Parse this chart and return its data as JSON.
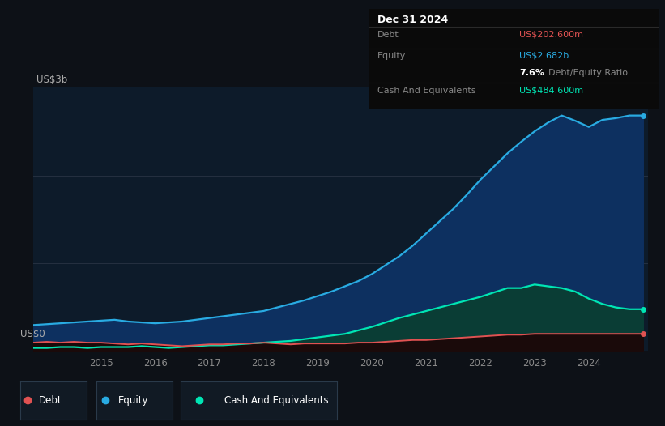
{
  "background_color": "#0d1117",
  "chart_bg": "#0d1b2a",
  "title_box": {
    "date": "Dec 31 2024",
    "debt_label": "Debt",
    "debt_value": "US$202.600m",
    "equity_label": "Equity",
    "equity_value": "US$2.682b",
    "ratio_bold": "7.6%",
    "ratio_text": "Debt/Equity Ratio",
    "cash_label": "Cash And Equivalents",
    "cash_value": "US$484.600m"
  },
  "ylabel": "US$3b",
  "y0label": "US$0",
  "x_ticks": [
    2015,
    2016,
    2017,
    2018,
    2019,
    2020,
    2021,
    2022,
    2023,
    2024
  ],
  "equity_color": "#29abe2",
  "debt_color": "#e05252",
  "cash_color": "#00e5b4",
  "equity_fill": "#0d3060",
  "cash_fill": "#0a3d35",
  "years": [
    2013.75,
    2014.0,
    2014.25,
    2014.5,
    2014.75,
    2015.0,
    2015.25,
    2015.5,
    2015.75,
    2016.0,
    2016.25,
    2016.5,
    2016.75,
    2017.0,
    2017.25,
    2017.5,
    2017.75,
    2018.0,
    2018.25,
    2018.5,
    2018.75,
    2019.0,
    2019.25,
    2019.5,
    2019.75,
    2020.0,
    2020.25,
    2020.5,
    2020.75,
    2021.0,
    2021.25,
    2021.5,
    2021.75,
    2022.0,
    2022.25,
    2022.5,
    2022.75,
    2023.0,
    2023.25,
    2023.5,
    2023.75,
    2024.0,
    2024.25,
    2024.5,
    2024.75,
    2025.0
  ],
  "equity": [
    0.3,
    0.31,
    0.32,
    0.33,
    0.34,
    0.35,
    0.36,
    0.34,
    0.33,
    0.32,
    0.33,
    0.34,
    0.36,
    0.38,
    0.4,
    0.42,
    0.44,
    0.46,
    0.5,
    0.54,
    0.58,
    0.63,
    0.68,
    0.74,
    0.8,
    0.88,
    0.98,
    1.08,
    1.2,
    1.34,
    1.48,
    1.62,
    1.78,
    1.95,
    2.1,
    2.25,
    2.38,
    2.5,
    2.6,
    2.68,
    2.62,
    2.55,
    2.63,
    2.65,
    2.68,
    2.68
  ],
  "debt": [
    0.1,
    0.11,
    0.1,
    0.11,
    0.1,
    0.1,
    0.09,
    0.08,
    0.09,
    0.08,
    0.07,
    0.06,
    0.07,
    0.08,
    0.08,
    0.09,
    0.09,
    0.1,
    0.09,
    0.08,
    0.09,
    0.09,
    0.09,
    0.09,
    0.1,
    0.1,
    0.11,
    0.12,
    0.13,
    0.13,
    0.14,
    0.15,
    0.16,
    0.17,
    0.18,
    0.19,
    0.19,
    0.2,
    0.2,
    0.2,
    0.2,
    0.2,
    0.2,
    0.2,
    0.2,
    0.2
  ],
  "cash": [
    0.04,
    0.04,
    0.05,
    0.05,
    0.04,
    0.05,
    0.05,
    0.05,
    0.06,
    0.05,
    0.04,
    0.05,
    0.06,
    0.07,
    0.07,
    0.08,
    0.09,
    0.1,
    0.11,
    0.12,
    0.14,
    0.16,
    0.18,
    0.2,
    0.24,
    0.28,
    0.33,
    0.38,
    0.42,
    0.46,
    0.5,
    0.54,
    0.58,
    0.62,
    0.67,
    0.72,
    0.72,
    0.76,
    0.74,
    0.72,
    0.68,
    0.6,
    0.54,
    0.5,
    0.48,
    0.48
  ],
  "ylim": [
    0,
    3.0
  ],
  "xlim": [
    2013.75,
    2025.1
  ]
}
